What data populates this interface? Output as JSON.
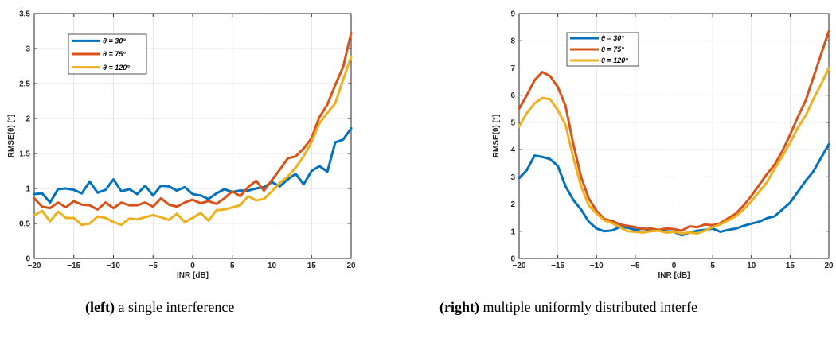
{
  "chart_data": [
    {
      "type": "line",
      "xlabel": "INR [dB]",
      "ylabel": "RMSE(θ) [°]",
      "xlim": [
        -20,
        20
      ],
      "ylim": [
        0,
        3.5
      ],
      "xticks": [
        -20,
        -15,
        -10,
        -5,
        0,
        5,
        10,
        15,
        20
      ],
      "yticks": [
        0,
        0.5,
        1,
        1.5,
        2,
        2.5,
        3,
        3.5
      ],
      "ytick_labels": [
        "0",
        "0.5",
        "1",
        "1.5",
        "2",
        "2.5",
        "3",
        "3.5"
      ],
      "grid": true,
      "legend_position": "top-left",
      "x": [
        -20,
        -19,
        -18,
        -17,
        -16,
        -15,
        -14,
        -13,
        -12,
        -11,
        -10,
        -9,
        -8,
        -7,
        -6,
        -5,
        -4,
        -3,
        -2,
        -1,
        0,
        1,
        2,
        3,
        4,
        5,
        6,
        7,
        8,
        9,
        10,
        11,
        12,
        13,
        14,
        15,
        16,
        17,
        18,
        19,
        20
      ],
      "series": [
        {
          "name": "θ = 30°",
          "color": "#0072BD",
          "values": [
            0.92,
            0.93,
            0.8,
            0.99,
            1.0,
            0.98,
            0.93,
            1.1,
            0.94,
            0.98,
            1.13,
            0.96,
            0.99,
            0.92,
            1.04,
            0.9,
            1.04,
            1.03,
            0.97,
            1.02,
            0.92,
            0.9,
            0.85,
            0.93,
            0.99,
            0.95,
            0.97,
            0.97,
            1.0,
            1.02,
            1.09,
            1.03,
            1.13,
            1.21,
            1.06,
            1.25,
            1.32,
            1.24,
            1.66,
            1.7,
            1.86
          ]
        },
        {
          "name": "θ = 75°",
          "color": "#D95319",
          "values": [
            0.86,
            0.74,
            0.72,
            0.8,
            0.73,
            0.82,
            0.77,
            0.76,
            0.7,
            0.8,
            0.72,
            0.8,
            0.76,
            0.76,
            0.8,
            0.74,
            0.86,
            0.77,
            0.74,
            0.8,
            0.84,
            0.79,
            0.82,
            0.78,
            0.86,
            0.96,
            0.89,
            1.02,
            1.11,
            0.97,
            1.12,
            1.27,
            1.43,
            1.46,
            1.57,
            1.72,
            2.02,
            2.2,
            2.48,
            2.74,
            3.22
          ]
        },
        {
          "name": "θ = 120°",
          "color": "#EDB120",
          "values": [
            0.62,
            0.68,
            0.53,
            0.67,
            0.58,
            0.58,
            0.48,
            0.5,
            0.6,
            0.58,
            0.52,
            0.48,
            0.57,
            0.56,
            0.59,
            0.62,
            0.59,
            0.55,
            0.64,
            0.52,
            0.58,
            0.65,
            0.54,
            0.69,
            0.7,
            0.73,
            0.76,
            0.89,
            0.83,
            0.85,
            0.96,
            1.08,
            1.17,
            1.3,
            1.46,
            1.66,
            1.93,
            2.08,
            2.22,
            2.56,
            2.88
          ]
        }
      ]
    },
    {
      "type": "line",
      "xlabel": "INR [dB]",
      "ylabel": "RMSE(θ) [°]",
      "xlim": [
        -20,
        20
      ],
      "ylim": [
        0,
        9
      ],
      "xticks": [
        -20,
        -15,
        -10,
        -5,
        0,
        5,
        10,
        15,
        20
      ],
      "yticks": [
        0,
        1,
        2,
        3,
        4,
        5,
        6,
        7,
        8,
        9
      ],
      "ytick_labels": [
        "0",
        "1",
        "2",
        "3",
        "4",
        "5",
        "6",
        "7",
        "8",
        "9"
      ],
      "grid": true,
      "legend_position": "top-left",
      "x": [
        -20,
        -19,
        -18,
        -17,
        -16,
        -15,
        -14,
        -13,
        -12,
        -11,
        -10,
        -9,
        -8,
        -7,
        -6,
        -5,
        -4,
        -3,
        -2,
        -1,
        0,
        1,
        2,
        3,
        4,
        5,
        6,
        7,
        8,
        9,
        10,
        11,
        12,
        13,
        14,
        15,
        16,
        17,
        18,
        19,
        20
      ],
      "series": [
        {
          "name": "θ = 30°",
          "color": "#0072BD",
          "values": [
            2.95,
            3.25,
            3.78,
            3.73,
            3.65,
            3.4,
            2.65,
            2.15,
            1.8,
            1.35,
            1.1,
            1.0,
            1.03,
            1.15,
            1.13,
            1.05,
            1.1,
            1.02,
            1.05,
            1.0,
            0.98,
            0.85,
            0.95,
            1.02,
            1.05,
            1.1,
            0.98,
            1.05,
            1.1,
            1.2,
            1.28,
            1.35,
            1.48,
            1.55,
            1.8,
            2.05,
            2.45,
            2.85,
            3.2,
            3.7,
            4.2
          ]
        },
        {
          "name": "θ = 75°",
          "color": "#D95319",
          "values": [
            5.5,
            6.0,
            6.55,
            6.85,
            6.7,
            6.3,
            5.6,
            4.2,
            3.0,
            2.2,
            1.75,
            1.45,
            1.38,
            1.25,
            1.2,
            1.15,
            1.08,
            1.1,
            1.05,
            1.1,
            1.08,
            1.02,
            1.18,
            1.15,
            1.25,
            1.22,
            1.3,
            1.48,
            1.65,
            1.95,
            2.3,
            2.7,
            3.1,
            3.45,
            3.95,
            4.55,
            5.2,
            5.8,
            6.65,
            7.5,
            8.35
          ]
        },
        {
          "name": "θ = 120°",
          "color": "#EDB120",
          "values": [
            4.85,
            5.35,
            5.7,
            5.9,
            5.85,
            5.45,
            4.9,
            3.7,
            2.65,
            1.95,
            1.65,
            1.4,
            1.3,
            1.15,
            1.0,
            0.98,
            0.95,
            1.0,
            1.02,
            0.95,
            0.98,
            0.92,
            0.95,
            0.92,
            1.02,
            1.15,
            1.25,
            1.4,
            1.55,
            1.8,
            2.1,
            2.45,
            2.8,
            3.3,
            3.75,
            4.25,
            4.8,
            5.25,
            5.85,
            6.4,
            7.0
          ]
        }
      ]
    }
  ],
  "captions": {
    "left": {
      "bold": "(left)",
      "text": " a single interference"
    },
    "right": {
      "bold": "(right)",
      "text": " multiple uniformly distributed interfe"
    }
  }
}
